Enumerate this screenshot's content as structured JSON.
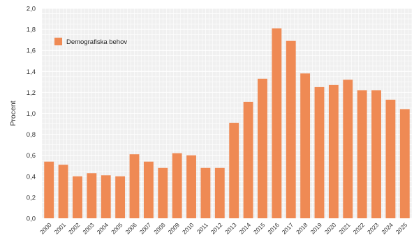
{
  "colors": {
    "bar": "#ef8a54",
    "plot_background": "#f0f0f0",
    "grid": "#ffffff",
    "axis_text": "#333333"
  },
  "chart_data": {
    "type": "bar",
    "title": "",
    "xlabel": "",
    "ylabel": "Procent",
    "ylim": [
      0,
      2.0
    ],
    "yticks": [
      "0,0",
      "0,2",
      "0,4",
      "0,6",
      "0,8",
      "1,0",
      "1,2",
      "1,4",
      "1,6",
      "1,8",
      "2,0"
    ],
    "grid": true,
    "legend_position": "top-left",
    "categories": [
      "2000",
      "2001",
      "2002",
      "2003",
      "2004",
      "2005",
      "2006",
      "2007",
      "2008",
      "2009",
      "2010",
      "2011",
      "2012",
      "2013",
      "2014",
      "2015",
      "2016",
      "2017",
      "2018",
      "2019",
      "2020",
      "2021",
      "2022",
      "2023",
      "2024",
      "2025"
    ],
    "series": [
      {
        "name": "Demografiska behov",
        "values": [
          0.54,
          0.51,
          0.4,
          0.43,
          0.41,
          0.4,
          0.61,
          0.54,
          0.48,
          0.62,
          0.6,
          0.48,
          0.48,
          0.91,
          1.11,
          1.33,
          1.81,
          1.69,
          1.38,
          1.25,
          1.27,
          1.32,
          1.22,
          1.22,
          1.13,
          1.04
        ]
      }
    ]
  }
}
